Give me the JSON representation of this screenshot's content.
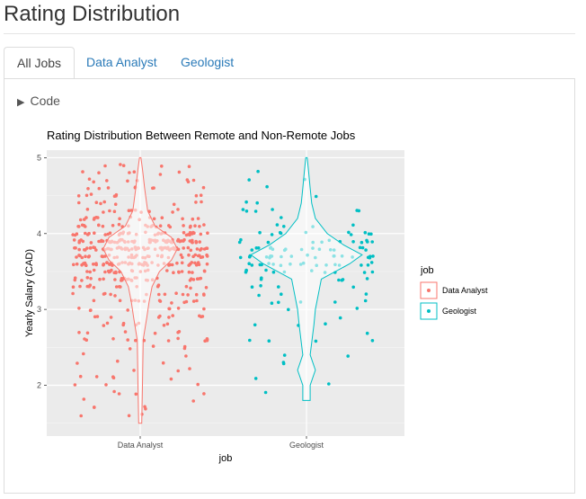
{
  "page": {
    "title": "Rating Distribution"
  },
  "tabs": [
    {
      "label": "All Jobs",
      "active": true
    },
    {
      "label": "Data Analyst",
      "active": false
    },
    {
      "label": "Geologist",
      "active": false
    }
  ],
  "code_toggle": {
    "label": "Code",
    "icon": "triangle-right-icon"
  },
  "chart_data": {
    "type": "violin+jitter",
    "title": "Rating Distribution Between Remote and Non-Remote Jobs",
    "xlabel": "job",
    "ylabel": "Yearly Salary (CAD)",
    "categories": [
      "Data Analyst",
      "Geologist"
    ],
    "yticks": [
      2,
      3,
      4,
      5
    ],
    "ylim": [
      1.33,
      5.1
    ],
    "legend": {
      "title": "job",
      "position": "right",
      "entries": [
        "Data Analyst",
        "Geologist"
      ]
    },
    "colors": {
      "Data Analyst": "#f8766d",
      "Geologist": "#00bfc4"
    },
    "grid": true,
    "series": [
      {
        "name": "Data Analyst",
        "violin": [
          [
            1.5,
            0.02
          ],
          [
            2.0,
            0.03
          ],
          [
            2.6,
            0.04
          ],
          [
            2.9,
            0.09
          ],
          [
            3.1,
            0.12
          ],
          [
            3.3,
            0.16
          ],
          [
            3.5,
            0.26
          ],
          [
            3.65,
            0.42
          ],
          [
            3.8,
            0.5
          ],
          [
            3.95,
            0.42
          ],
          [
            4.1,
            0.2
          ],
          [
            4.3,
            0.1
          ],
          [
            4.6,
            0.06
          ],
          [
            4.85,
            0.03
          ],
          [
            5.0,
            0.01
          ]
        ],
        "points_summary": {
          "count": 520,
          "min": 1.5,
          "max": 5.0,
          "dense_range": [
            3.3,
            4.2
          ]
        }
      },
      {
        "name": "Geologist",
        "violin": [
          [
            1.8,
            0.05
          ],
          [
            2.0,
            0.05
          ],
          [
            2.2,
            0.12
          ],
          [
            2.4,
            0.05
          ],
          [
            2.8,
            0.1
          ],
          [
            3.0,
            0.12
          ],
          [
            3.2,
            0.16
          ],
          [
            3.4,
            0.2
          ],
          [
            3.6,
            0.58
          ],
          [
            3.72,
            0.75
          ],
          [
            3.85,
            0.5
          ],
          [
            4.0,
            0.28
          ],
          [
            4.2,
            0.12
          ],
          [
            4.4,
            0.07
          ],
          [
            4.6,
            0.05
          ],
          [
            4.8,
            0.03
          ],
          [
            5.0,
            0.01
          ]
        ],
        "points_summary": {
          "count": 140,
          "min": 1.8,
          "max": 5.0,
          "dense_range": [
            3.4,
            4.1
          ]
        }
      }
    ]
  }
}
